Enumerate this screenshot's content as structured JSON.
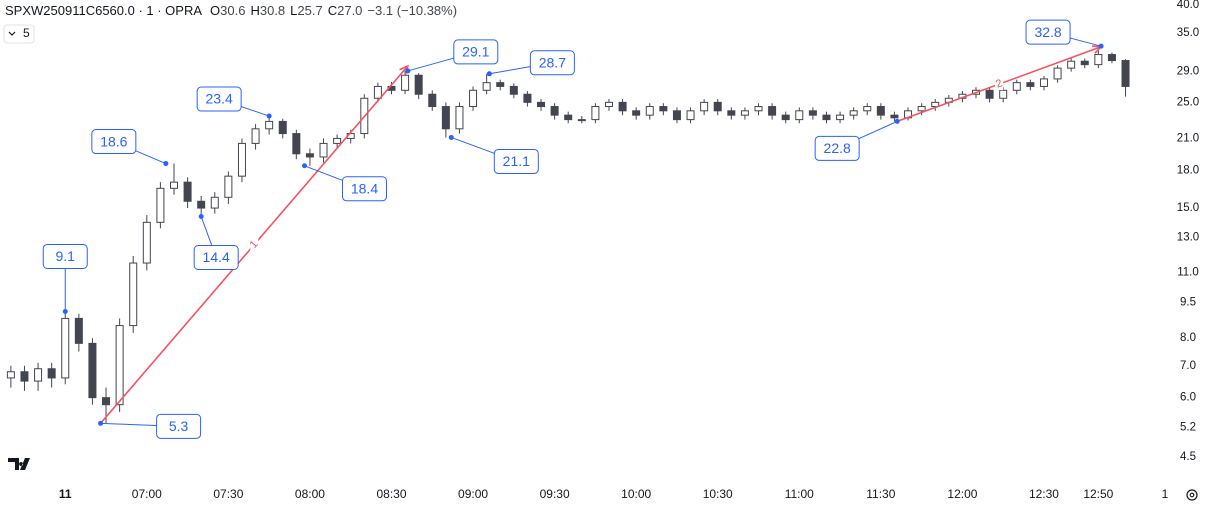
{
  "chart_data": {
    "type": "candlestick",
    "title": "SPXW250911C6560.0 · 1 · OPRA",
    "ohlc_legend": [
      {
        "key": "O",
        "value": "30.6"
      },
      {
        "key": "H",
        "value": "30.8"
      },
      {
        "key": "L",
        "value": "25.7"
      },
      {
        "key": "C",
        "value": "27.0"
      }
    ],
    "change": "−3.1 (−10.38%)",
    "interval_menu": "5",
    "scale_button": "1",
    "log_scale": true,
    "up_color": "#ffffff",
    "down_color": "#434651",
    "wick_color": "#434651",
    "marker_color": "#2962ff",
    "trend_color": "#f7525f",
    "xlim": [
      366,
      789
    ],
    "ylim": [
      4.03,
      41
    ],
    "xticks": [
      {
        "value": 390,
        "label": "11"
      },
      {
        "value": 420,
        "label": "07:00"
      },
      {
        "value": 450,
        "label": "07:30"
      },
      {
        "value": 480,
        "label": "08:00"
      },
      {
        "value": 510,
        "label": "08:30"
      },
      {
        "value": 540,
        "label": "09:00"
      },
      {
        "value": 570,
        "label": "09:30"
      },
      {
        "value": 600,
        "label": "10:00"
      },
      {
        "value": 630,
        "label": "10:30"
      },
      {
        "value": 660,
        "label": "11:00"
      },
      {
        "value": 690,
        "label": "11:30"
      },
      {
        "value": 720,
        "label": "12:00"
      },
      {
        "value": 750,
        "label": "12:30"
      },
      {
        "value": 770,
        "label": "12:50"
      }
    ],
    "yticks": [
      {
        "value": 40,
        "label": "40.0"
      },
      {
        "value": 35,
        "label": "35.0"
      },
      {
        "value": 29,
        "label": "29.0"
      },
      {
        "value": 25,
        "label": "25.0"
      },
      {
        "value": 21,
        "label": "21.0"
      },
      {
        "value": 18,
        "label": "18.0"
      },
      {
        "value": 15,
        "label": "15.0"
      },
      {
        "value": 13,
        "label": "13.0"
      },
      {
        "value": 11,
        "label": "11.0"
      },
      9.5,
      {
        "value": 8,
        "label": "8.0"
      },
      {
        "value": 7,
        "label": "7.0"
      },
      {
        "value": 6,
        "label": "6.0"
      },
      5.2,
      4.5
    ],
    "x": [
      370,
      375,
      380,
      385,
      390,
      395,
      400,
      405,
      410,
      415,
      420,
      425,
      430,
      435,
      440,
      445,
      450,
      455,
      460,
      465,
      470,
      475,
      480,
      485,
      490,
      495,
      500,
      505,
      510,
      515,
      520,
      525,
      530,
      535,
      540,
      545,
      550,
      555,
      560,
      565,
      570,
      575,
      580,
      585,
      590,
      595,
      600,
      605,
      610,
      615,
      620,
      625,
      630,
      635,
      640,
      645,
      650,
      655,
      660,
      665,
      670,
      675,
      680,
      685,
      690,
      695,
      700,
      705,
      710,
      715,
      720,
      725,
      730,
      735,
      740,
      745,
      750,
      755,
      760,
      765,
      770,
      775,
      780
    ],
    "open": [
      6.6,
      6.8,
      6.5,
      6.9,
      6.6,
      8.8,
      7.8,
      6.0,
      5.8,
      8.5,
      11.5,
      14.0,
      16.5,
      17.0,
      15.5,
      15.0,
      15.8,
      17.5,
      20.5,
      22.0,
      22.8,
      21.5,
      19.5,
      19.2,
      20.5,
      21.0,
      21.5,
      25.5,
      27.0,
      26.5,
      28.5,
      26.0,
      24.5,
      22.0,
      24.5,
      26.5,
      27.5,
      27.0,
      26.0,
      25.0,
      24.5,
      23.5,
      23.0,
      23.0,
      24.5,
      25.0,
      24.0,
      23.5,
      24.5,
      24.0,
      23.0,
      24.0,
      25.0,
      24.0,
      23.5,
      24.0,
      24.5,
      23.5,
      23.0,
      24.0,
      23.5,
      23.0,
      23.5,
      24.0,
      24.5,
      23.5,
      23.2,
      24.0,
      24.5,
      25.0,
      25.5,
      26.0,
      26.5,
      25.5,
      26.5,
      27.5,
      27.0,
      28.0,
      29.5,
      30.5,
      30.0,
      31.5,
      30.6
    ],
    "high": [
      7.0,
      7.0,
      7.1,
      7.1,
      9.1,
      9.0,
      8.0,
      6.3,
      8.8,
      11.9,
      14.5,
      17.0,
      18.6,
      17.4,
      15.9,
      16.2,
      17.9,
      21.0,
      22.5,
      23.4,
      23.1,
      21.9,
      20.0,
      21.0,
      21.4,
      21.9,
      26.0,
      27.5,
      27.6,
      29.1,
      28.8,
      26.5,
      25.0,
      25.0,
      27.0,
      28.7,
      27.9,
      27.4,
      26.4,
      25.4,
      24.9,
      23.9,
      23.4,
      24.9,
      25.4,
      25.4,
      24.4,
      24.9,
      24.9,
      24.4,
      24.4,
      25.4,
      25.4,
      24.4,
      24.4,
      24.9,
      24.9,
      23.9,
      24.4,
      24.4,
      23.9,
      23.9,
      24.4,
      24.9,
      24.9,
      23.9,
      24.4,
      24.9,
      25.4,
      25.9,
      26.4,
      26.9,
      26.9,
      26.9,
      27.9,
      27.9,
      28.4,
      29.9,
      30.9,
      30.9,
      32.8,
      31.8,
      30.8
    ],
    "low": [
      6.3,
      6.2,
      6.2,
      6.3,
      6.4,
      7.5,
      5.8,
      5.3,
      5.6,
      8.2,
      11.1,
      13.6,
      16.0,
      15.0,
      14.4,
      14.6,
      15.3,
      17.0,
      19.9,
      21.4,
      21.0,
      19.0,
      18.4,
      18.7,
      20.0,
      20.5,
      21.0,
      25.0,
      26.0,
      26.0,
      25.4,
      24.0,
      21.1,
      21.5,
      24.0,
      26.0,
      26.5,
      25.5,
      24.5,
      24.0,
      23.0,
      22.6,
      22.6,
      22.6,
      24.0,
      23.5,
      23.0,
      23.0,
      23.5,
      22.6,
      22.6,
      23.5,
      23.5,
      23.0,
      23.0,
      23.5,
      23.0,
      22.6,
      22.6,
      23.0,
      22.6,
      22.6,
      23.0,
      23.5,
      23.0,
      22.8,
      22.9,
      23.5,
      24.0,
      24.5,
      25.0,
      25.5,
      25.0,
      25.0,
      26.0,
      26.5,
      26.5,
      27.5,
      29.0,
      29.5,
      29.5,
      30.2,
      25.7
    ],
    "close": [
      6.8,
      6.5,
      6.9,
      6.6,
      8.8,
      7.8,
      6.0,
      5.8,
      8.5,
      11.5,
      14.0,
      16.5,
      17.0,
      15.5,
      15.0,
      15.8,
      17.5,
      20.5,
      22.0,
      22.8,
      21.5,
      19.5,
      19.2,
      20.5,
      21.0,
      21.5,
      25.5,
      27.0,
      26.5,
      28.5,
      26.0,
      24.5,
      22.0,
      24.5,
      26.5,
      27.5,
      27.0,
      26.0,
      25.0,
      24.5,
      23.5,
      23.0,
      23.0,
      24.5,
      25.0,
      24.0,
      23.5,
      24.5,
      24.0,
      23.0,
      24.0,
      25.0,
      24.0,
      23.5,
      24.0,
      24.5,
      23.5,
      23.0,
      24.0,
      23.5,
      23.0,
      23.5,
      24.0,
      24.5,
      23.5,
      23.2,
      24.0,
      24.5,
      25.0,
      25.5,
      26.0,
      26.5,
      25.5,
      26.5,
      27.5,
      27.0,
      28.0,
      29.5,
      30.5,
      30.0,
      31.5,
      30.6,
      27.0
    ],
    "markers": [
      {
        "x": 390,
        "value": 9.1
      },
      {
        "x": 403,
        "value": 5.3
      },
      {
        "x": 427,
        "value": 18.6
      },
      {
        "x": 440,
        "value": 14.4
      },
      {
        "x": 465,
        "value": 23.4
      },
      {
        "x": 478,
        "value": 18.4
      },
      {
        "x": 516,
        "value": 29.1
      },
      {
        "x": 532,
        "value": 21.1
      },
      {
        "x": 546,
        "value": 28.7
      },
      {
        "x": 696,
        "value": 22.8
      },
      {
        "x": 771,
        "value": 32.8
      }
    ],
    "trendlines": [
      {
        "label": "1",
        "x": [
          403,
          516
        ],
        "values": [
          5.3,
          29.8
        ]
      },
      {
        "label": "2",
        "x": [
          696,
          771
        ],
        "values": [
          22.8,
          32.7
        ]
      }
    ]
  }
}
